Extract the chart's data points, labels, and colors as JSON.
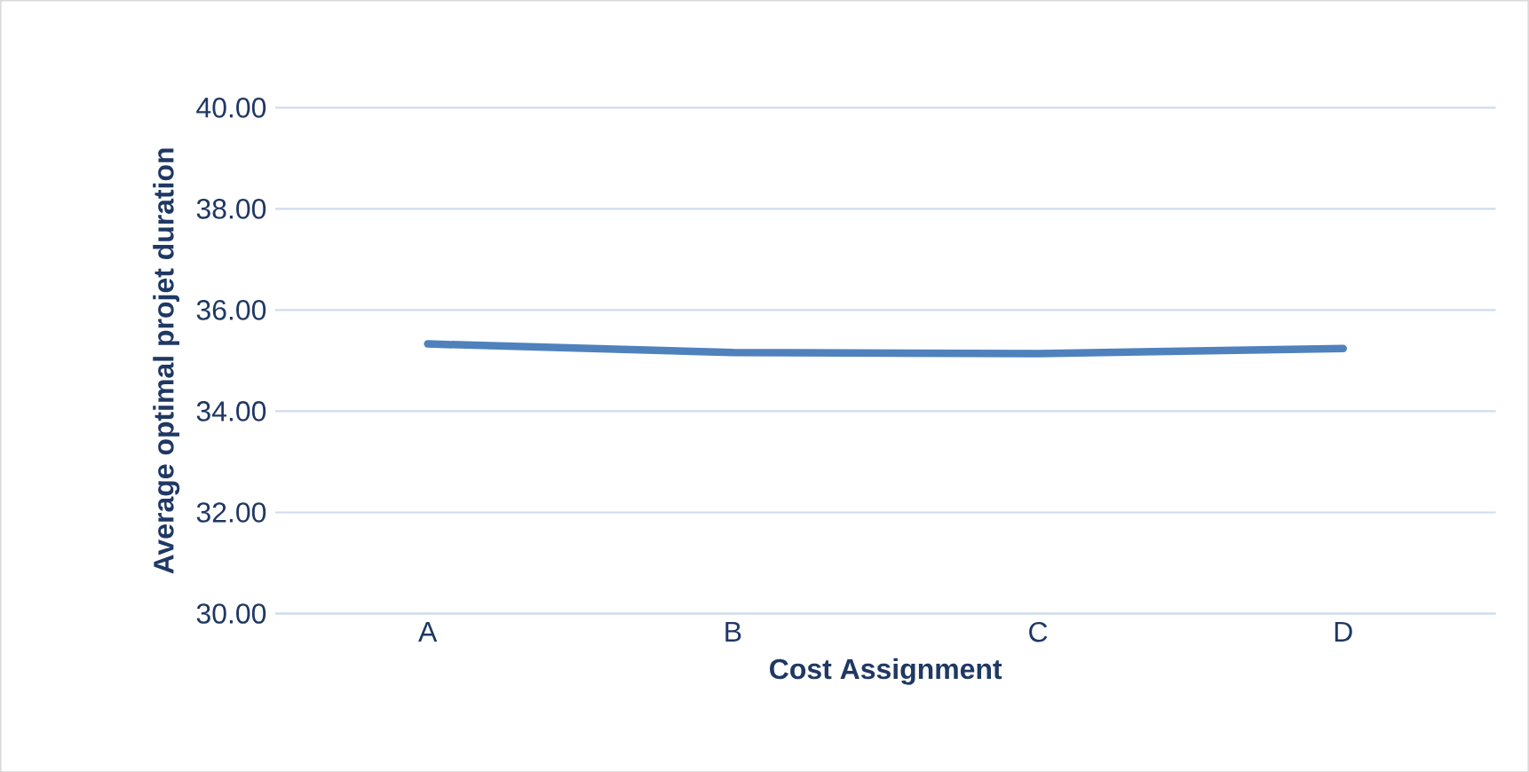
{
  "chart_data": {
    "type": "line",
    "xlabel": "Cost Assignment",
    "ylabel": "Average optimal projet duration",
    "categories": [
      "A",
      "B",
      "C",
      "D"
    ],
    "series": [
      {
        "color": "#4f81bd",
        "values": [
          35.33,
          35.16,
          35.14,
          35.24
        ]
      }
    ],
    "ylim": [
      30,
      40
    ],
    "yticks": [
      {
        "value": 30,
        "label": "30.00"
      },
      {
        "value": 32,
        "label": "32.00"
      },
      {
        "value": 34,
        "label": "34.00"
      },
      {
        "value": 36,
        "label": "36.00"
      },
      {
        "value": 38,
        "label": "38.00"
      },
      {
        "value": 40,
        "label": "40.00"
      }
    ],
    "grid": "y",
    "legend": false,
    "marker": "none",
    "line_style": "solid"
  }
}
